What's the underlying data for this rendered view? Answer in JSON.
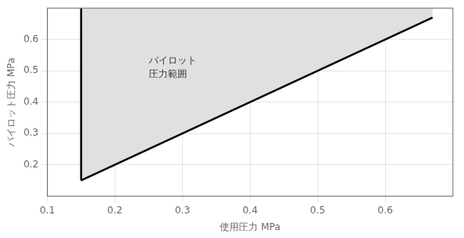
{
  "chart_data": {
    "type": "line",
    "xlabel": "使用圧力 MPa",
    "ylabel": "バイロット圧力 MPa",
    "xlim": [
      0.1,
      0.7
    ],
    "ylim": [
      0.1,
      0.7
    ],
    "xticks": [
      0.1,
      0.2,
      0.3,
      0.4,
      0.5,
      0.6
    ],
    "yticks": [
      0.2,
      0.3,
      0.4,
      0.5,
      0.6
    ],
    "grid": true,
    "series": [
      {
        "type": "area",
        "color": "#e0e0e0",
        "x": [
          0.15,
          0.15,
          0.67,
          0.67
        ],
        "values": [
          0.15,
          0.7,
          0.7,
          0.67
        ]
      },
      {
        "type": "line",
        "color": "#000000",
        "x": [
          0.15,
          0.15
        ],
        "values": [
          0.15,
          0.7
        ]
      },
      {
        "type": "line",
        "color": "#000000",
        "x": [
          0.15,
          0.67
        ],
        "values": [
          0.15,
          0.67
        ]
      }
    ],
    "annotations": [
      {
        "text": "バイロット\n圧力範囲",
        "x": 0.25,
        "y": 0.51
      }
    ]
  }
}
